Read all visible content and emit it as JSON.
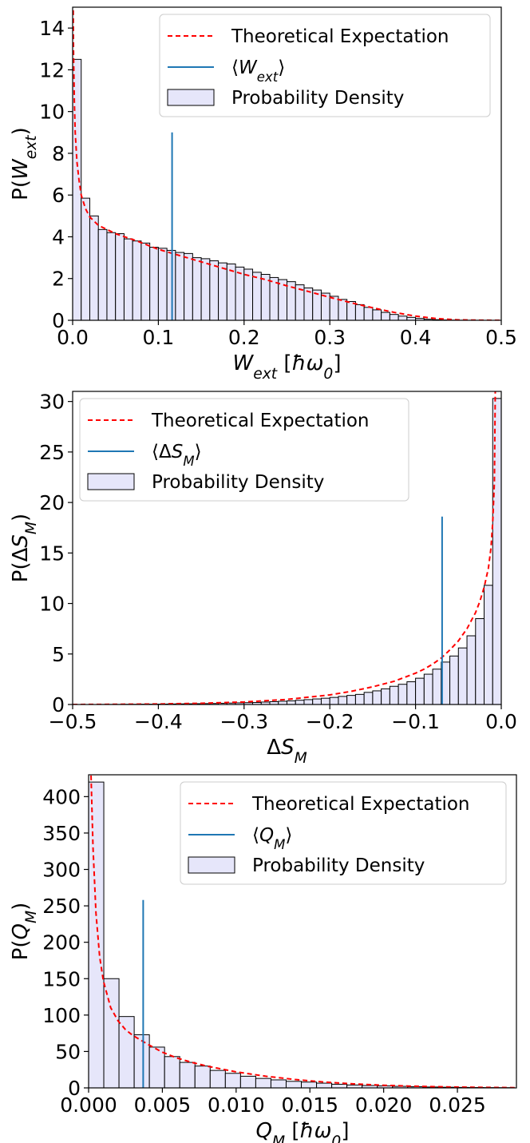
{
  "colors": {
    "theory": "#ff0000",
    "mean": "#1f77b4",
    "bar_fill": "#e6e6fa",
    "bar_edge": "#000000"
  },
  "chart_data": [
    {
      "type": "bar",
      "ylabel": "P(W_ext)",
      "xlabel": "W_ext [ħω_0]",
      "xlim": [
        0,
        0.5
      ],
      "ylim": [
        0,
        15
      ],
      "xticks": [
        0,
        0.1,
        0.2,
        0.3,
        0.4,
        0.5
      ],
      "xtick_labels": [
        "0.0",
        "0.1",
        "0.2",
        "0.3",
        "0.4",
        "0.5"
      ],
      "yticks": [
        0,
        2,
        4,
        6,
        8,
        10,
        12,
        14
      ],
      "ytick_labels": [
        "0",
        "2",
        "4",
        "6",
        "8",
        "10",
        "12",
        "14"
      ],
      "legend_position": "top-right",
      "legend": [
        "Theoretical Expectation",
        "⟨W_ext⟩",
        "Probability Density"
      ],
      "mean": {
        "x": 0.116,
        "height": 9.0
      },
      "histogram": {
        "bin_start": 0.0,
        "bin_width": 0.01,
        "values": [
          12.5,
          5.85,
          5.0,
          4.35,
          4.2,
          4.15,
          3.9,
          3.8,
          3.7,
          3.5,
          3.45,
          3.35,
          3.25,
          3.2,
          3.0,
          2.95,
          2.85,
          2.75,
          2.7,
          2.55,
          2.45,
          2.3,
          2.2,
          2.05,
          1.95,
          1.85,
          1.7,
          1.55,
          1.45,
          1.3,
          1.15,
          1.0,
          0.9,
          0.75,
          0.62,
          0.5,
          0.38,
          0.28,
          0.2,
          0.14,
          0.09,
          0.05,
          0.03,
          0.015,
          0.008,
          0.004,
          0.002,
          0.001,
          0.0,
          0.0
        ]
      },
      "theory": {
        "x": [
          0.0005,
          0.001,
          0.002,
          0.003,
          0.005,
          0.0075,
          0.01,
          0.015,
          0.02,
          0.03,
          0.05,
          0.075,
          0.1,
          0.125,
          0.15,
          0.175,
          0.2,
          0.225,
          0.25,
          0.275,
          0.3,
          0.325,
          0.35,
          0.375,
          0.4,
          0.425,
          0.45,
          0.475,
          0.5
        ],
        "y": [
          16.0,
          13.0,
          10.5,
          9.0,
          7.6,
          6.7,
          6.0,
          5.35,
          4.95,
          4.55,
          4.15,
          3.8,
          3.4,
          3.1,
          2.8,
          2.5,
          2.2,
          1.95,
          1.65,
          1.38,
          1.1,
          0.84,
          0.6,
          0.38,
          0.2,
          0.08,
          0.02,
          0.005,
          0.0
        ]
      }
    },
    {
      "type": "bar",
      "ylabel": "P(ΔS_M)",
      "xlabel": "ΔS_M",
      "xlim": [
        -0.5,
        0.0
      ],
      "ylim": [
        0,
        31
      ],
      "xticks": [
        -0.5,
        -0.4,
        -0.3,
        -0.2,
        -0.1,
        0.0
      ],
      "xtick_labels": [
        "−0.5",
        "−0.4",
        "−0.3",
        "−0.2",
        "−0.1",
        "0.0"
      ],
      "yticks": [
        0,
        5,
        10,
        15,
        20,
        25,
        30
      ],
      "ytick_labels": [
        "0",
        "5",
        "10",
        "15",
        "20",
        "25",
        "30"
      ],
      "legend_position": "top-left",
      "legend": [
        "Theoretical Expectation",
        "⟨ΔS_M⟩",
        "Probability Density"
      ],
      "mean": {
        "x": -0.069,
        "height": 18.6
      },
      "histogram": {
        "bin_start": -0.5,
        "bin_width": 0.01,
        "values": [
          0.0,
          0.0,
          0.0,
          0.01,
          0.01,
          0.01,
          0.02,
          0.02,
          0.03,
          0.03,
          0.04,
          0.05,
          0.06,
          0.07,
          0.08,
          0.09,
          0.1,
          0.12,
          0.14,
          0.16,
          0.18,
          0.2,
          0.24,
          0.28,
          0.32,
          0.36,
          0.42,
          0.48,
          0.55,
          0.62,
          0.7,
          0.8,
          0.9,
          1.0,
          1.2,
          1.35,
          1.55,
          1.8,
          2.0,
          2.25,
          2.6,
          3.0,
          3.5,
          4.2,
          4.8,
          5.6,
          6.8,
          8.5,
          11.8,
          30.3
        ]
      },
      "theory": {
        "x": [
          -0.5,
          -0.45,
          -0.4,
          -0.35,
          -0.3,
          -0.25,
          -0.2,
          -0.175,
          -0.15,
          -0.125,
          -0.1,
          -0.09,
          -0.08,
          -0.07,
          -0.06,
          -0.05,
          -0.04,
          -0.03,
          -0.025,
          -0.02,
          -0.015,
          -0.012,
          -0.01,
          -0.008,
          -0.007
        ],
        "y": [
          0.0,
          0.02,
          0.05,
          0.12,
          0.25,
          0.5,
          0.95,
          1.3,
          1.75,
          2.3,
          3.1,
          3.5,
          4.0,
          4.6,
          5.4,
          6.3,
          7.5,
          9.1,
          10.2,
          11.6,
          13.5,
          15.5,
          18.0,
          22.0,
          31.0
        ]
      }
    },
    {
      "type": "bar",
      "ylabel": "P(Q_M)",
      "xlabel": "Q_M [ħω_0]",
      "xlim": [
        0,
        0.029
      ],
      "ylim": [
        0,
        430
      ],
      "xticks": [
        0,
        0.005,
        0.01,
        0.015,
        0.02,
        0.025
      ],
      "xtick_labels": [
        "0.000",
        "0.005",
        "0.010",
        "0.015",
        "0.020",
        "0.025"
      ],
      "yticks": [
        0,
        50,
        100,
        150,
        200,
        250,
        300,
        350,
        400
      ],
      "ytick_labels": [
        "0",
        "50",
        "100",
        "150",
        "200",
        "250",
        "300",
        "350",
        "400"
      ],
      "legend_position": "top-right",
      "legend": [
        "Theoretical Expectation",
        "⟨Q_M⟩",
        "Probability Density"
      ],
      "mean": {
        "x": 0.0037,
        "height": 258
      },
      "histogram": {
        "bin_start": 0.0,
        "bin_width": 0.00103,
        "values": [
          420,
          150,
          98,
          73,
          56,
          43,
          35,
          30,
          24,
          20,
          16,
          13,
          11,
          9,
          8,
          6.5,
          5,
          4,
          3.3,
          2.7,
          2.1,
          1.6,
          1.2,
          0.9,
          0.7,
          0.5,
          0.4,
          0.3
        ]
      },
      "theory": {
        "x": [
          0.00015,
          0.0003,
          0.0005,
          0.00075,
          0.001,
          0.0015,
          0.002,
          0.0025,
          0.003,
          0.004,
          0.005,
          0.006,
          0.007,
          0.008,
          0.009,
          0.01,
          0.012,
          0.014,
          0.016,
          0.018,
          0.02,
          0.022,
          0.025,
          0.029
        ],
        "y": [
          440,
          330,
          240,
          180,
          147,
          110,
          92,
          80,
          72,
          60,
          49,
          41,
          35,
          30,
          26,
          22,
          16,
          11.5,
          8,
          5.5,
          3.6,
          2.3,
          1.1,
          0.3
        ]
      }
    }
  ]
}
